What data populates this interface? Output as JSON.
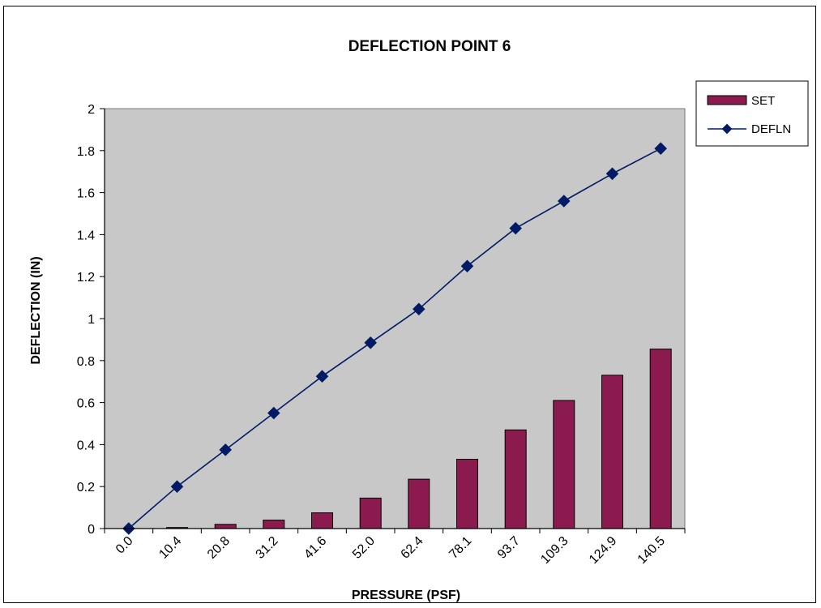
{
  "chart_data": {
    "type": "bar",
    "title": "DEFLECTION  POINT 6",
    "xlabel": "PRESSURE  (PSF)",
    "ylabel": "DEFLECTION  (IN)",
    "categories": [
      "0.0",
      "10.4",
      "20.8",
      "31.2",
      "41.6",
      "52.0",
      "62.4",
      "78.1",
      "93.7",
      "109.3",
      "124.9",
      "140.5"
    ],
    "ylim": [
      0,
      2
    ],
    "yticks": [
      "0",
      "0.2",
      "0.4",
      "0.6",
      "0.8",
      "1",
      "1.2",
      "1.4",
      "1.6",
      "1.8",
      "2"
    ],
    "ytick_values": [
      0,
      0.2,
      0.4,
      0.6,
      0.8,
      1.0,
      1.2,
      1.4,
      1.6,
      1.8,
      2.0
    ],
    "grid": false,
    "legend_position": "right",
    "series": [
      {
        "name": "SET",
        "type": "bar",
        "color": "#8b1a4f",
        "values": [
          0,
          0.005,
          0.02,
          0.04,
          0.075,
          0.145,
          0.235,
          0.33,
          0.47,
          0.61,
          0.73,
          0.855
        ]
      },
      {
        "name": "DEFLN",
        "type": "line",
        "color": "#001a66",
        "values": [
          0,
          0.2,
          0.375,
          0.55,
          0.725,
          0.885,
          1.045,
          1.25,
          1.43,
          1.56,
          1.69,
          1.81
        ]
      }
    ],
    "plot_background": "#c8c8c8"
  }
}
